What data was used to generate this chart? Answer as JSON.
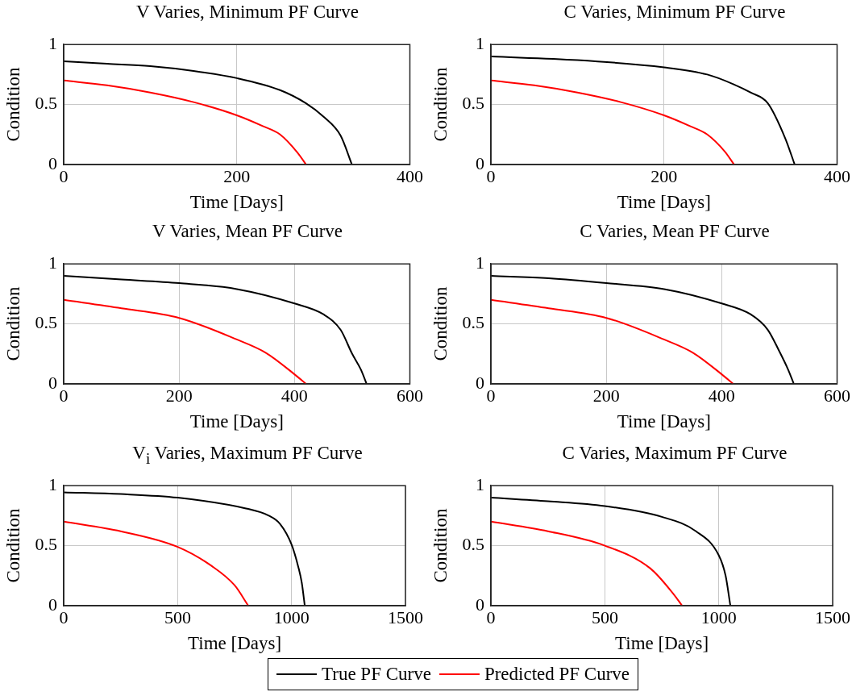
{
  "chart_data": [
    {
      "type": "line",
      "title": "V Varies, Minimum PF Curve",
      "xlabel": "Time [Days]",
      "ylabel": "Condition",
      "xlim": [
        0,
        400
      ],
      "xticks": [
        0,
        200,
        400
      ],
      "ylim": [
        0,
        1
      ],
      "yticks": [
        0,
        0.5,
        1
      ],
      "grid": true,
      "legend": "bottom",
      "series": [
        {
          "name": "True PF Curve",
          "color": "#000000",
          "x": [
            0,
            50,
            100,
            150,
            200,
            250,
            280,
            300,
            320,
            333
          ],
          "values": [
            0.86,
            0.84,
            0.82,
            0.78,
            0.72,
            0.62,
            0.51,
            0.4,
            0.24,
            0
          ]
        },
        {
          "name": "Predicted PF Curve",
          "color": "#ff0000",
          "x": [
            0,
            50,
            100,
            150,
            200,
            230,
            250,
            270,
            280
          ],
          "values": [
            0.7,
            0.66,
            0.6,
            0.52,
            0.41,
            0.32,
            0.25,
            0.1,
            0
          ]
        }
      ]
    },
    {
      "type": "line",
      "title": "C Varies, Minimum PF Curve",
      "xlabel": "Time [Days]",
      "ylabel": "Condition",
      "xlim": [
        0,
        400
      ],
      "xticks": [
        0,
        200,
        400
      ],
      "ylim": [
        0,
        1
      ],
      "yticks": [
        0,
        0.5,
        1
      ],
      "grid": true,
      "series": [
        {
          "color": "#000000",
          "x": [
            0,
            100,
            200,
            250,
            280,
            300,
            320,
            340,
            351
          ],
          "values": [
            0.9,
            0.87,
            0.81,
            0.75,
            0.67,
            0.6,
            0.51,
            0.22,
            0
          ]
        },
        {
          "color": "#ff0000",
          "x": [
            0,
            50,
            100,
            150,
            200,
            230,
            250,
            270,
            281
          ],
          "values": [
            0.7,
            0.66,
            0.6,
            0.52,
            0.41,
            0.32,
            0.25,
            0.11,
            0
          ]
        }
      ]
    },
    {
      "type": "line",
      "title": "V Varies, Mean PF Curve",
      "xlabel": "Time [Days]",
      "ylabel": "Condition",
      "xlim": [
        0,
        600
      ],
      "xticks": [
        0,
        200,
        400,
        600
      ],
      "ylim": [
        0,
        1
      ],
      "yticks": [
        0,
        0.5,
        1
      ],
      "grid": true,
      "series": [
        {
          "color": "#000000",
          "x": [
            0,
            100,
            200,
            300,
            400,
            450,
            480,
            500,
            515,
            525
          ],
          "values": [
            0.9,
            0.87,
            0.84,
            0.79,
            0.67,
            0.58,
            0.45,
            0.25,
            0.12,
            0
          ]
        },
        {
          "color": "#ff0000",
          "x": [
            0,
            100,
            200,
            300,
            350,
            400,
            420
          ],
          "values": [
            0.7,
            0.63,
            0.55,
            0.37,
            0.26,
            0.08,
            0
          ]
        }
      ]
    },
    {
      "type": "line",
      "title": "C Varies, Mean PF Curve",
      "xlabel": "Time [Days]",
      "ylabel": "Condition",
      "xlim": [
        0,
        600
      ],
      "xticks": [
        0,
        200,
        400,
        600
      ],
      "ylim": [
        0,
        1
      ],
      "yticks": [
        0,
        0.5,
        1
      ],
      "grid": true,
      "series": [
        {
          "color": "#000000",
          "x": [
            0,
            100,
            200,
            300,
            400,
            450,
            480,
            500,
            515,
            525
          ],
          "values": [
            0.9,
            0.88,
            0.84,
            0.79,
            0.67,
            0.58,
            0.45,
            0.27,
            0.12,
            0
          ]
        },
        {
          "color": "#ff0000",
          "x": [
            0,
            100,
            200,
            300,
            350,
            400,
            420
          ],
          "values": [
            0.7,
            0.63,
            0.55,
            0.37,
            0.26,
            0.08,
            0
          ]
        }
      ]
    },
    {
      "type": "line",
      "title": "V$_{i}$ Varies, Maximum PF Curve",
      "xlabel": "Time [Days]",
      "ylabel": "Condition",
      "xlim": [
        0,
        1500
      ],
      "xticks": [
        0,
        500,
        1000,
        1500
      ],
      "ylim": [
        0,
        1
      ],
      "yticks": [
        0,
        0.5,
        1
      ],
      "grid": true,
      "series": [
        {
          "color": "#000000",
          "x": [
            0,
            250,
            500,
            800,
            900,
            950,
            1000,
            1030,
            1045,
            1058
          ],
          "values": [
            0.945,
            0.93,
            0.9,
            0.81,
            0.75,
            0.68,
            0.51,
            0.32,
            0.19,
            0
          ]
        },
        {
          "color": "#ff0000",
          "x": [
            0,
            250,
            500,
            650,
            750,
            810
          ],
          "values": [
            0.7,
            0.62,
            0.49,
            0.33,
            0.17,
            0
          ]
        }
      ]
    },
    {
      "type": "line",
      "title": "C Varies, Maximum PF Curve",
      "xlabel": "Time [Days]",
      "ylabel": "Condition",
      "xlim": [
        0,
        1500
      ],
      "xticks": [
        0,
        500,
        1000,
        1500
      ],
      "ylim": [
        0,
        1
      ],
      "yticks": [
        0,
        0.5,
        1
      ],
      "grid": true,
      "series": [
        {
          "color": "#000000",
          "x": [
            0,
            250,
            500,
            750,
            900,
            1000,
            1030,
            1051
          ],
          "values": [
            0.9,
            0.87,
            0.83,
            0.74,
            0.62,
            0.42,
            0.25,
            0
          ]
        },
        {
          "color": "#ff0000",
          "x": [
            0,
            250,
            500,
            700,
            800,
            839
          ],
          "values": [
            0.7,
            0.62,
            0.5,
            0.31,
            0.1,
            0
          ]
        }
      ]
    }
  ]
}
